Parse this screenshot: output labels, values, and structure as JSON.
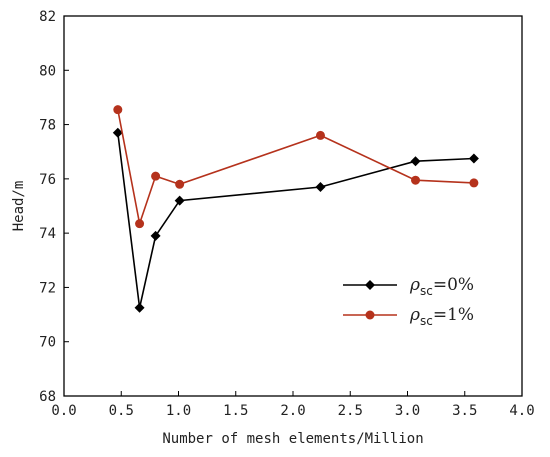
{
  "chart_data": {
    "type": "line",
    "title": "",
    "xlabel": "Number of mesh elements/Million",
    "ylabel": "Head/m",
    "xlim": [
      0.0,
      4.0
    ],
    "ylim": [
      68,
      82
    ],
    "xticks": [
      0.0,
      0.5,
      1.0,
      1.5,
      2.0,
      2.5,
      3.0,
      3.5,
      4.0
    ],
    "xtick_labels": [
      "0.0",
      "0.5",
      "1.0",
      "1.5",
      "2.0",
      "2.5",
      "3.0",
      "3.5",
      "4.0"
    ],
    "yticks": [
      68,
      70,
      72,
      74,
      76,
      78,
      80,
      82
    ],
    "ytick_labels": [
      "68",
      "70",
      "72",
      "74",
      "76",
      "78",
      "80",
      "82"
    ],
    "grid": false,
    "legend_position": "bottom-right",
    "series": [
      {
        "legend": {
          "symbol": "ρ",
          "sub": "sc",
          "rest": "=0%"
        },
        "color": "#000000",
        "marker": "diamond",
        "x": [
          0.47,
          0.66,
          0.8,
          1.01,
          2.24,
          3.07,
          3.58
        ],
        "y": [
          77.7,
          71.25,
          73.9,
          75.2,
          75.7,
          76.65,
          76.75
        ]
      },
      {
        "legend": {
          "symbol": "ρ",
          "sub": "sc",
          "rest": "=1%"
        },
        "color": "#b5321c",
        "marker": "circle",
        "x": [
          0.47,
          0.66,
          0.8,
          1.01,
          2.24,
          3.07,
          3.58
        ],
        "y": [
          78.55,
          74.35,
          76.1,
          75.8,
          77.6,
          75.95,
          75.85
        ]
      }
    ]
  }
}
